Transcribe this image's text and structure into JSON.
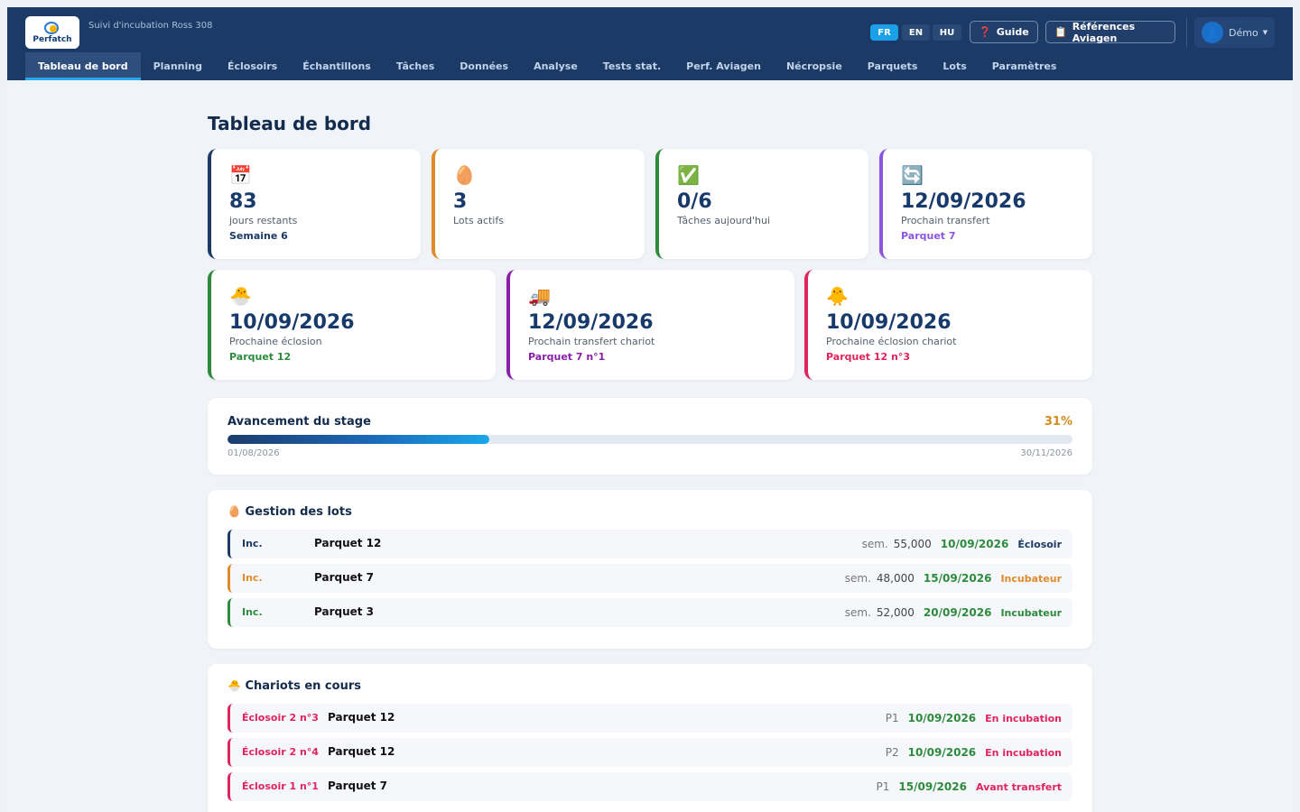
{
  "header": {
    "logo_text": "Perfatch",
    "app_subtitle": "Suivi d'incubation Ross 308",
    "languages": [
      "FR",
      "EN",
      "HU"
    ],
    "guide_label": "Guide",
    "guide_icon": "help-icon",
    "refs_label": "Références Aviagen",
    "refs_icon": "clipboard-icon",
    "user_label": "Démo",
    "user_icon": "user-icon"
  },
  "nav": {
    "tabs": [
      "Tableau de bord",
      "Planning",
      "Éclosoirs",
      "Échantillons",
      "Tâches",
      "Données",
      "Analyse",
      "Tests stat.",
      "Perf. Aviagen",
      "Nécropsie",
      "Parquets",
      "Lots",
      "Paramètres"
    ],
    "active": "Tableau de bord"
  },
  "page_title": "Tableau de bord",
  "stats_row1": [
    {
      "icon": "📅",
      "value": "83",
      "label": "jours restants",
      "sub": "Semaine 6",
      "color": "#1b3a66",
      "sub_color": "#1b3a66"
    },
    {
      "icon": "🥚",
      "value": "3",
      "label": "Lots actifs",
      "sub": "",
      "color": "#e08a2a",
      "sub_color": "#e08a2a"
    },
    {
      "icon": "✅",
      "value": "0/6",
      "label": "Tâches aujourd'hui",
      "sub": "",
      "color": "#2e8b3d",
      "sub_color": "#2e8b3d"
    },
    {
      "icon": "🔄",
      "value": "12/09/2026",
      "label": "Prochain transfert",
      "sub": "Parquet 7",
      "color": "#8b55e0",
      "sub_color": "#8b55e0"
    }
  ],
  "stats_row2": [
    {
      "icon": "🐣",
      "value": "10/09/2026",
      "label": "Prochaine éclosion",
      "sub": "Parquet 12",
      "color": "#2e8b3d",
      "sub_color": "#2e8b3d"
    },
    {
      "icon": "🚚",
      "value": "12/09/2026",
      "label": "Prochain transfert chariot",
      "sub": "Parquet 7 n°1",
      "color": "#8a1fa8",
      "sub_color": "#8a1fa8"
    },
    {
      "icon": "🐥",
      "value": "10/09/2026",
      "label": "Prochaine éclosion chariot",
      "sub": "Parquet 12 n°3",
      "color": "#e0245e",
      "sub_color": "#e0245e"
    }
  ],
  "progress": {
    "title": "Avancement du stage",
    "percent_label": "31%",
    "percent": 31,
    "start": "01/08/2026",
    "end": "30/11/2026"
  },
  "lots": {
    "title": "Gestion des lots",
    "icon": "🥚",
    "rows": [
      {
        "tag": "Inc.",
        "name": "Parquet 12",
        "sem": "sem.",
        "eggs": "55,000",
        "date": "10/09/2026",
        "status": "Éclosoir",
        "color": "#1b3a66"
      },
      {
        "tag": "Inc.",
        "name": "Parquet 7",
        "sem": "sem.",
        "eggs": "48,000",
        "date": "15/09/2026",
        "status": "Incubateur",
        "color": "#e08a2a"
      },
      {
        "tag": "Inc.",
        "name": "Parquet 3",
        "sem": "sem.",
        "eggs": "52,000",
        "date": "20/09/2026",
        "status": "Incubateur",
        "color": "#2e8b3d"
      }
    ]
  },
  "chariots": {
    "title": "Chariots en cours",
    "icon": "🐣",
    "rows": [
      {
        "tag": "Éclosoir 2 n°3",
        "name": "Parquet 12",
        "pos": "P1",
        "date": "10/09/2026",
        "status": "En incubation",
        "color": "#e0245e"
      },
      {
        "tag": "Éclosoir 2 n°4",
        "name": "Parquet 12",
        "pos": "P2",
        "date": "10/09/2026",
        "status": "En incubation",
        "color": "#e0245e"
      },
      {
        "tag": "Éclosoir 1 n°1",
        "name": "Parquet 7",
        "pos": "P1",
        "date": "15/09/2026",
        "status": "Avant transfert",
        "color": "#e0245e"
      }
    ]
  }
}
